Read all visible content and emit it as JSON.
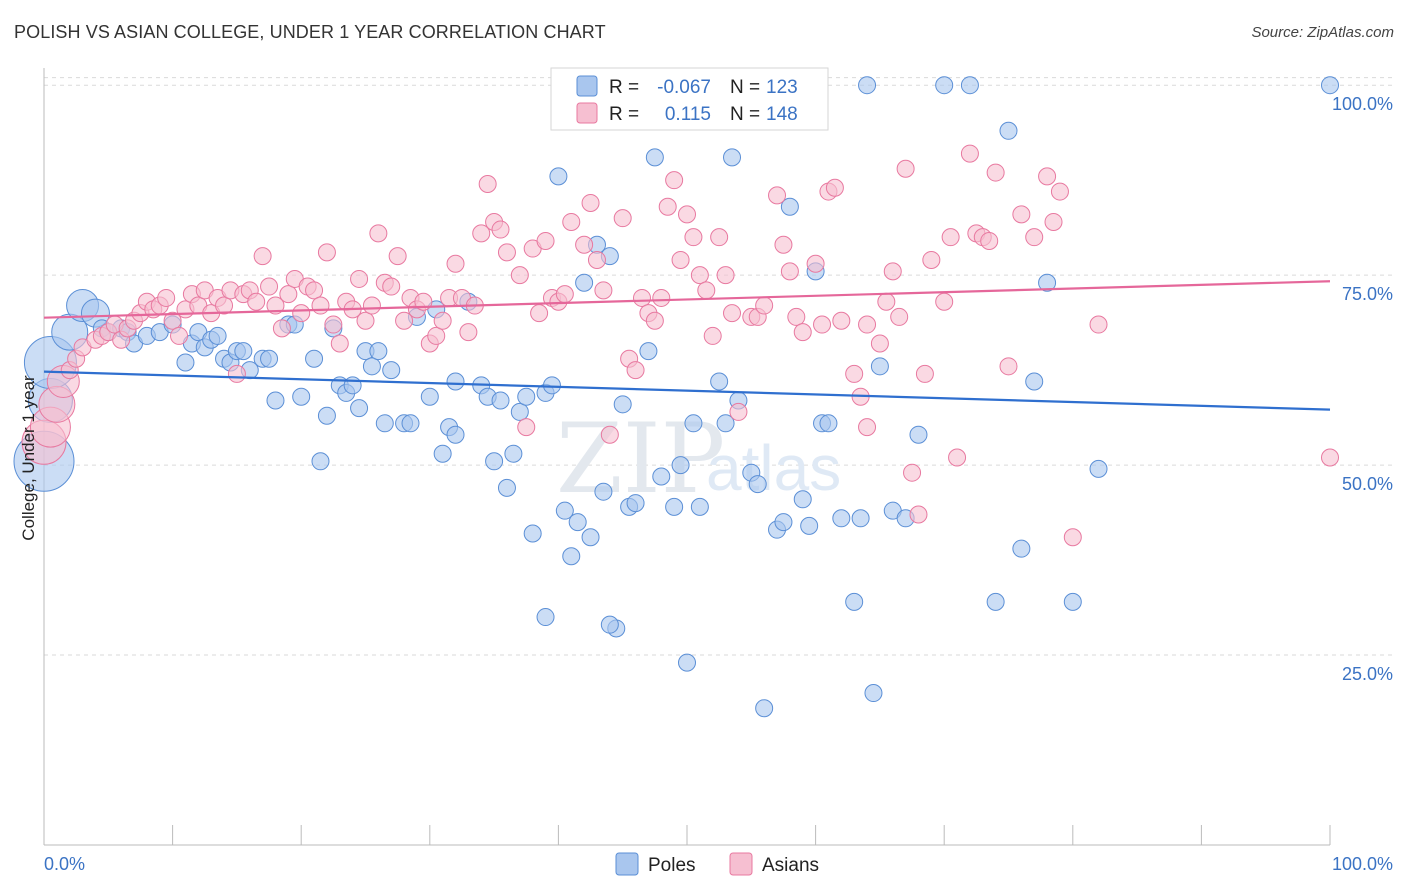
{
  "header": {
    "title": "POLISH VS ASIAN COLLEGE, UNDER 1 YEAR CORRELATION CHART",
    "source": "Source: ZipAtlas.com"
  },
  "legend": {
    "poles": {
      "r_label": "R =",
      "r_value": "-0.067",
      "n_label": "N =",
      "n_value": "123"
    },
    "asians": {
      "r_label": "R =",
      "r_value": "0.115",
      "n_label": "N =",
      "n_value": "148"
    }
  },
  "bottom_legend": {
    "poles": "Poles",
    "asians": "Asians"
  },
  "watermark": {
    "zip": "ZIP",
    "atlas": "atlas"
  },
  "colors": {
    "poles": "#5b8fd6",
    "poles_fill": "#a9c6ee",
    "asians": "#e879a0",
    "asians_fill": "#f6bfd1",
    "tick": "#3b73c4"
  },
  "chart_data": {
    "type": "scatter",
    "title": "POLISH VS ASIAN COLLEGE, UNDER 1 YEAR CORRELATION CHART",
    "xlabel": "",
    "ylabel": "College, Under 1 year",
    "xlim": [
      0,
      100
    ],
    "ylim": [
      0,
      102
    ],
    "x_tick_labels": [
      "0.0%",
      "100.0%"
    ],
    "y_ticks": [
      25,
      50,
      75,
      100
    ],
    "y_tick_labels": [
      "25.0%",
      "50.0%",
      "75.0%",
      "100.0%"
    ],
    "grid": true,
    "trend_lines": [
      {
        "series": "Poles",
        "x": [
          0,
          100
        ],
        "y": [
          62.3,
          57.3
        ]
      },
      {
        "series": "Asians",
        "x": [
          0,
          100
        ],
        "y": [
          69.4,
          74.2
        ]
      }
    ],
    "series": [
      {
        "name": "Poles",
        "points": [
          [
            0,
            50.5
          ],
          [
            0.5,
            58.5
          ],
          [
            0.5,
            63.5
          ],
          [
            2,
            67.5
          ],
          [
            3,
            71
          ],
          [
            4,
            70
          ],
          [
            4.5,
            68
          ],
          [
            5,
            67.5
          ],
          [
            6,
            68
          ],
          [
            6.5,
            67.5
          ],
          [
            7,
            66
          ],
          [
            8,
            67
          ],
          [
            9,
            67.5
          ],
          [
            10,
            68.5
          ],
          [
            11,
            63.5
          ],
          [
            11.5,
            66
          ],
          [
            12,
            67.5
          ],
          [
            12.5,
            65.5
          ],
          [
            13,
            66.5
          ],
          [
            13.5,
            67
          ],
          [
            14,
            64
          ],
          [
            14.5,
            63.5
          ],
          [
            15,
            65
          ],
          [
            15.5,
            65
          ],
          [
            16,
            62.5
          ],
          [
            17,
            64
          ],
          [
            17.5,
            64
          ],
          [
            18,
            58.5
          ],
          [
            19,
            68.5
          ],
          [
            19.5,
            68.5
          ],
          [
            20,
            59
          ],
          [
            21,
            64
          ],
          [
            21.5,
            50.5
          ],
          [
            22,
            56.5
          ],
          [
            22.5,
            68
          ],
          [
            23,
            60.5
          ],
          [
            23.5,
            59.5
          ],
          [
            24,
            60.5
          ],
          [
            24.5,
            57.5
          ],
          [
            25,
            65
          ],
          [
            25.5,
            63
          ],
          [
            26,
            65
          ],
          [
            26.5,
            55.5
          ],
          [
            27,
            62.5
          ],
          [
            28,
            55.5
          ],
          [
            28.5,
            55.5
          ],
          [
            29,
            69.5
          ],
          [
            30,
            59
          ],
          [
            30.5,
            70.5
          ],
          [
            31,
            51.5
          ],
          [
            31.5,
            55
          ],
          [
            32,
            54
          ],
          [
            33,
            71.5
          ],
          [
            34,
            60.5
          ],
          [
            34.5,
            59
          ],
          [
            35,
            50.5
          ],
          [
            35.5,
            58.5
          ],
          [
            36,
            47
          ],
          [
            36.5,
            51.5
          ],
          [
            37,
            57
          ],
          [
            37.5,
            59
          ],
          [
            38,
            41
          ],
          [
            39,
            59.5
          ],
          [
            39.5,
            60.5
          ],
          [
            40,
            88
          ],
          [
            40.5,
            44
          ],
          [
            41,
            38
          ],
          [
            41.5,
            42.5
          ],
          [
            42,
            74
          ],
          [
            42.5,
            40.5
          ],
          [
            43,
            79
          ],
          [
            43.5,
            46.5
          ],
          [
            44,
            77.5
          ],
          [
            44.5,
            28.5
          ],
          [
            45,
            58
          ],
          [
            45.5,
            44.5
          ],
          [
            46,
            45
          ],
          [
            47,
            65
          ],
          [
            47.5,
            90.5
          ],
          [
            48,
            48.5
          ],
          [
            49,
            44.5
          ],
          [
            49.5,
            50
          ],
          [
            50,
            24
          ],
          [
            50.5,
            55.5
          ],
          [
            51,
            44.5
          ],
          [
            52,
            100
          ],
          [
            52.5,
            61
          ],
          [
            53,
            55.5
          ],
          [
            53.5,
            90.5
          ],
          [
            54,
            58.5
          ],
          [
            55,
            49
          ],
          [
            55.5,
            47.5
          ],
          [
            56,
            18
          ],
          [
            57,
            41.5
          ],
          [
            57.5,
            42.5
          ],
          [
            58,
            84
          ],
          [
            59,
            45.5
          ],
          [
            59.5,
            42
          ],
          [
            60,
            75.5
          ],
          [
            60.5,
            55.5
          ],
          [
            61,
            55.5
          ],
          [
            62,
            43
          ],
          [
            63,
            32
          ],
          [
            63.5,
            43
          ],
          [
            64,
            100
          ],
          [
            64.5,
            20
          ],
          [
            65,
            63
          ],
          [
            66,
            44
          ],
          [
            67,
            43
          ],
          [
            68,
            54
          ],
          [
            70,
            100
          ],
          [
            72,
            100
          ],
          [
            74,
            32
          ],
          [
            75,
            94
          ],
          [
            76,
            39
          ],
          [
            77,
            61
          ],
          [
            78,
            74
          ],
          [
            80,
            32
          ],
          [
            82,
            49.5
          ],
          [
            100,
            100
          ],
          [
            44,
            29
          ],
          [
            39,
            30
          ],
          [
            32,
            61
          ]
        ],
        "sizes": {
          "0": 30,
          "1": 22,
          "2": 26,
          "3": 18,
          "4": 16,
          "5": 14
        }
      },
      {
        "name": "Asians",
        "points": [
          [
            0,
            53
          ],
          [
            0.5,
            55
          ],
          [
            1,
            58
          ],
          [
            1.5,
            61
          ],
          [
            2,
            62.5
          ],
          [
            2.5,
            64
          ],
          [
            3,
            65.5
          ],
          [
            4,
            66.5
          ],
          [
            4.5,
            67
          ],
          [
            5,
            67.5
          ],
          [
            5.5,
            68.5
          ],
          [
            6,
            66.5
          ],
          [
            6.5,
            68
          ],
          [
            7,
            69
          ],
          [
            7.5,
            70
          ],
          [
            8,
            71.5
          ],
          [
            8.5,
            70.5
          ],
          [
            9,
            71
          ],
          [
            9.5,
            72
          ],
          [
            10,
            69
          ],
          [
            10.5,
            67
          ],
          [
            11,
            70.5
          ],
          [
            11.5,
            72.5
          ],
          [
            12,
            71
          ],
          [
            12.5,
            73
          ],
          [
            13,
            70
          ],
          [
            13.5,
            72
          ],
          [
            14,
            71
          ],
          [
            14.5,
            73
          ],
          [
            15,
            62
          ],
          [
            15.5,
            72.5
          ],
          [
            16,
            73
          ],
          [
            16.5,
            71.5
          ],
          [
            17,
            77.5
          ],
          [
            17.5,
            73.5
          ],
          [
            18,
            71
          ],
          [
            18.5,
            68
          ],
          [
            19,
            72.5
          ],
          [
            19.5,
            74.5
          ],
          [
            20,
            70
          ],
          [
            20.5,
            73.5
          ],
          [
            21,
            73
          ],
          [
            21.5,
            71
          ],
          [
            22,
            78
          ],
          [
            22.5,
            68.5
          ],
          [
            23,
            66
          ],
          [
            23.5,
            71.5
          ],
          [
            24,
            70.5
          ],
          [
            24.5,
            74.5
          ],
          [
            25,
            69
          ],
          [
            25.5,
            71
          ],
          [
            26,
            80.5
          ],
          [
            26.5,
            74
          ],
          [
            27,
            73.5
          ],
          [
            27.5,
            77.5
          ],
          [
            28,
            69
          ],
          [
            28.5,
            72
          ],
          [
            29,
            70.5
          ],
          [
            29.5,
            71.5
          ],
          [
            30,
            66
          ],
          [
            30.5,
            67
          ],
          [
            31,
            69
          ],
          [
            31.5,
            72
          ],
          [
            32,
            76.5
          ],
          [
            32.5,
            72
          ],
          [
            33,
            67.5
          ],
          [
            33.5,
            71
          ],
          [
            34,
            80.5
          ],
          [
            34.5,
            87
          ],
          [
            35,
            82
          ],
          [
            35.5,
            81
          ],
          [
            36,
            78
          ],
          [
            37,
            75
          ],
          [
            37.5,
            55
          ],
          [
            38,
            78.5
          ],
          [
            38.5,
            70
          ],
          [
            39,
            79.5
          ],
          [
            39.5,
            72
          ],
          [
            40,
            71.5
          ],
          [
            40.5,
            72.5
          ],
          [
            41,
            82
          ],
          [
            42,
            79
          ],
          [
            42.5,
            84.5
          ],
          [
            43,
            77
          ],
          [
            43.5,
            73
          ],
          [
            44,
            54
          ],
          [
            45,
            82.5
          ],
          [
            45.5,
            64
          ],
          [
            46,
            62.5
          ],
          [
            46.5,
            72
          ],
          [
            47,
            70
          ],
          [
            47.5,
            69
          ],
          [
            48,
            72
          ],
          [
            48.5,
            84
          ],
          [
            49,
            87.5
          ],
          [
            49.5,
            77
          ],
          [
            50,
            83
          ],
          [
            50.5,
            80
          ],
          [
            51,
            75
          ],
          [
            51.5,
            73
          ],
          [
            52,
            67
          ],
          [
            52.5,
            80
          ],
          [
            53,
            75
          ],
          [
            53.5,
            70
          ],
          [
            54,
            57
          ],
          [
            55,
            69.5
          ],
          [
            55.5,
            69.5
          ],
          [
            56,
            71
          ],
          [
            57,
            85.5
          ],
          [
            57.5,
            79
          ],
          [
            58,
            75.5
          ],
          [
            58.5,
            69.5
          ],
          [
            59,
            67.5
          ],
          [
            60,
            76.5
          ],
          [
            60.5,
            68.5
          ],
          [
            61,
            86
          ],
          [
            61.5,
            86.5
          ],
          [
            62,
            69
          ],
          [
            63,
            62
          ],
          [
            63.5,
            59
          ],
          [
            64,
            68.5
          ],
          [
            65,
            66
          ],
          [
            65.5,
            71.5
          ],
          [
            66,
            75.5
          ],
          [
            66.5,
            69.5
          ],
          [
            67,
            89
          ],
          [
            67.5,
            49
          ],
          [
            68,
            43.5
          ],
          [
            68.5,
            62
          ],
          [
            69,
            77
          ],
          [
            70,
            71.5
          ],
          [
            70.5,
            80
          ],
          [
            71,
            51
          ],
          [
            72,
            91
          ],
          [
            72.5,
            80.5
          ],
          [
            73,
            80
          ],
          [
            73.5,
            79.5
          ],
          [
            74,
            88.5
          ],
          [
            75,
            63
          ],
          [
            76,
            83
          ],
          [
            77,
            80
          ],
          [
            78,
            88
          ],
          [
            78.5,
            82
          ],
          [
            79,
            86
          ],
          [
            80,
            40.5
          ],
          [
            82,
            68.5
          ],
          [
            64,
            55
          ],
          [
            100,
            51
          ]
        ],
        "sizes": {
          "0": 22,
          "1": 20,
          "2": 18,
          "3": 16
        }
      }
    ]
  }
}
